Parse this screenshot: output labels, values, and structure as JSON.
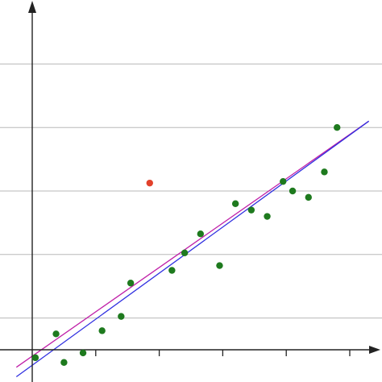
{
  "chart_data": {
    "type": "scatter",
    "xlim": [
      0,
      10.8
    ],
    "ylim": [
      -0.5,
      11.5
    ],
    "grid": "horizontal",
    "gridlines_y": [
      1,
      3,
      5,
      7,
      9
    ],
    "x_ticks": [
      2,
      4,
      6,
      8,
      10
    ],
    "series": [
      {
        "color": "#1e7a1e",
        "points": [
          [
            0.1,
            -0.25
          ],
          [
            0.75,
            0.5
          ],
          [
            1.0,
            -0.4
          ],
          [
            1.6,
            -0.1
          ],
          [
            2.2,
            0.6
          ],
          [
            2.8,
            1.05
          ],
          [
            3.1,
            2.1
          ],
          [
            4.4,
            2.5
          ],
          [
            4.8,
            3.05
          ],
          [
            5.3,
            3.65
          ],
          [
            5.9,
            2.65
          ],
          [
            6.4,
            4.6
          ],
          [
            6.9,
            4.4
          ],
          [
            7.4,
            4.2
          ],
          [
            7.9,
            5.3
          ],
          [
            8.2,
            5.0
          ],
          [
            8.7,
            4.8
          ],
          [
            9.2,
            5.6
          ],
          [
            9.6,
            7.0
          ]
        ]
      },
      {
        "color": "#e2412b",
        "points": [
          [
            3.7,
            5.25
          ]
        ]
      }
    ],
    "lines": [
      {
        "color": "#c020a8",
        "from": [
          -0.5,
          -0.55
        ],
        "to": [
          10.6,
          7.2
        ]
      },
      {
        "color": "#3030e0",
        "from": [
          -0.5,
          -0.85
        ],
        "to": [
          10.6,
          7.2
        ]
      }
    ],
    "colors": {
      "axis": "#222222",
      "grid": "#b8b8b8"
    }
  }
}
